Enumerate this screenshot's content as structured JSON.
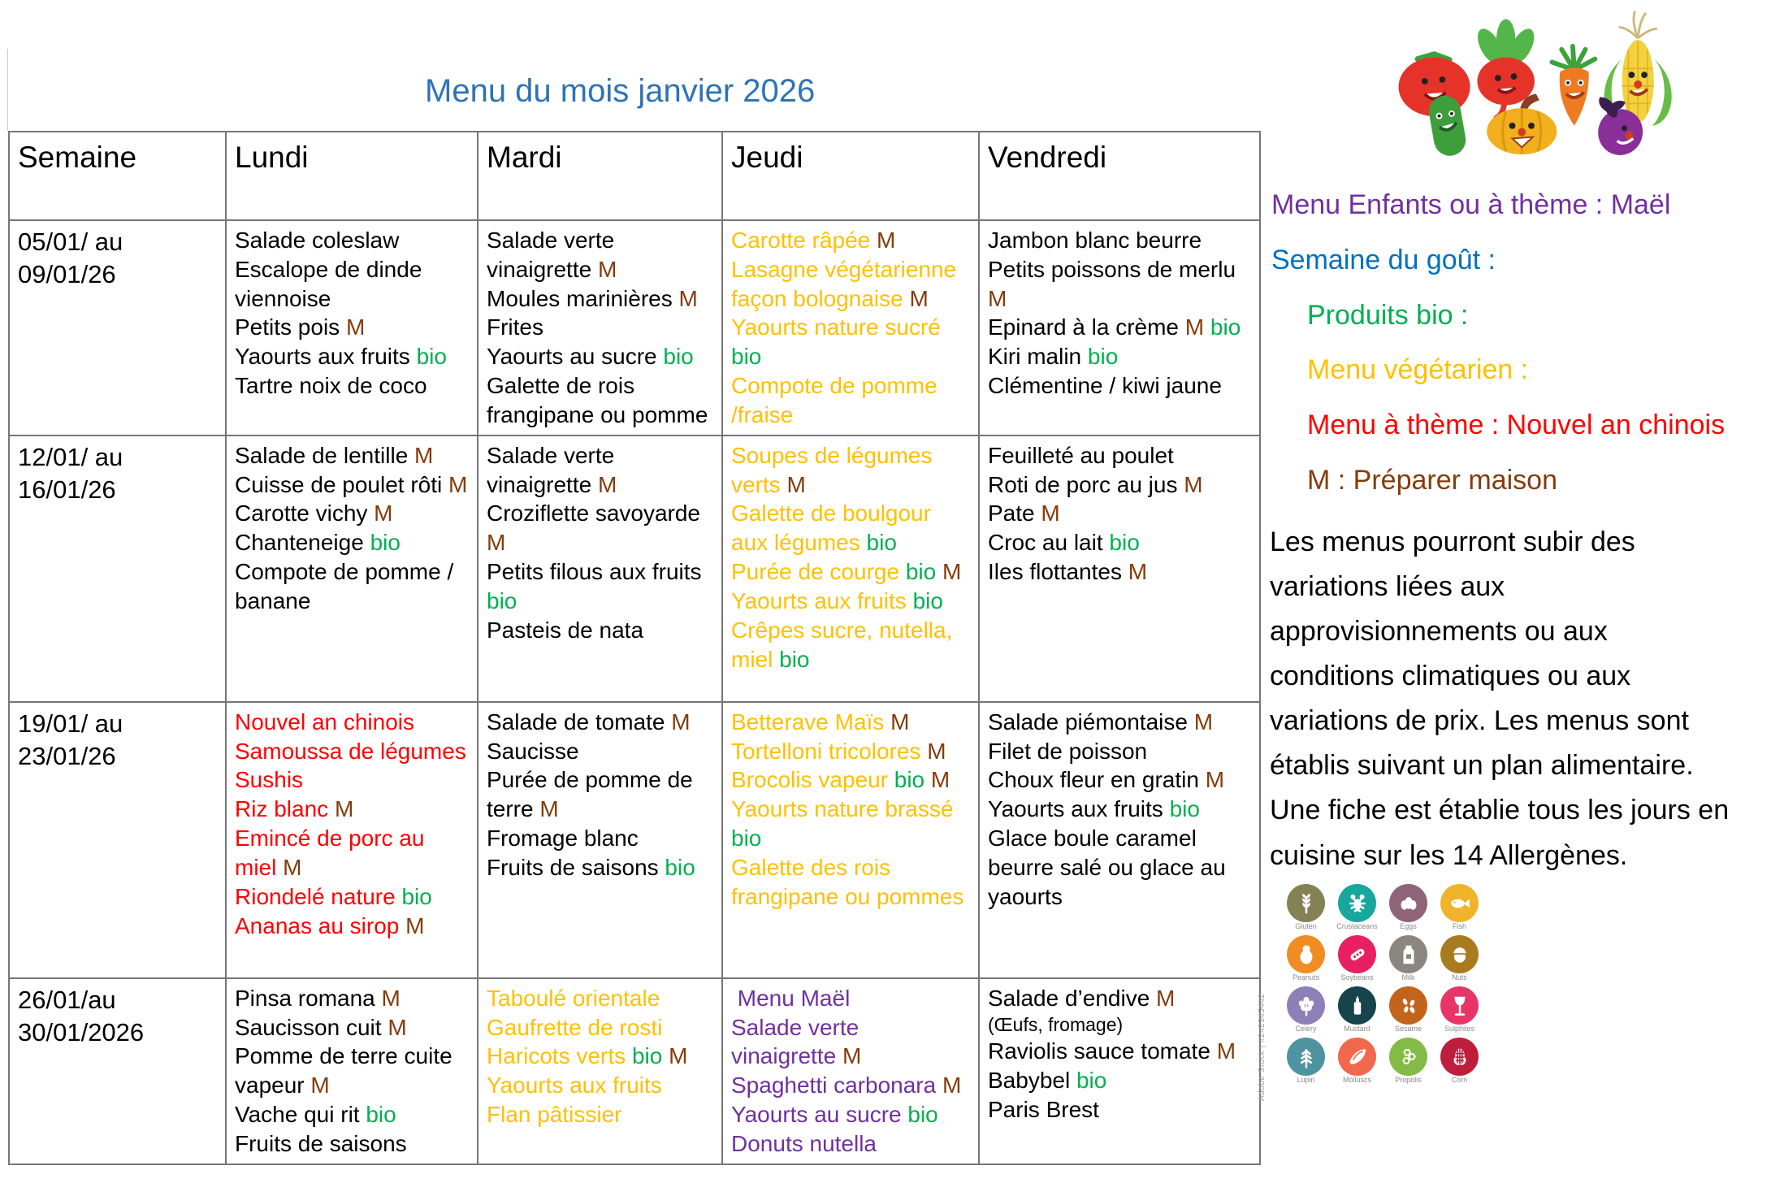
{
  "page": {
    "title": "Menu du mois janvier 2026"
  },
  "colors": {
    "black": "#000000",
    "gold": "#FFC000",
    "red": "#FF0000",
    "purple": "#7030A0",
    "blue": "#0070C0",
    "green": "#00B050",
    "brown": "#843C0C",
    "title_blue": "#2E74B5",
    "m_tag": "#843C0C",
    "bio_tag": "#00B050"
  },
  "table": {
    "headers": [
      "Semaine",
      "Lundi",
      "Mardi",
      "Jeudi",
      "Vendredi"
    ],
    "weeks": [
      {
        "dates": "05/01/ au\n09/01/26",
        "days": [
          {
            "color": "black",
            "items": [
              "Salade coleslaw",
              "Escalope de dinde viennoise",
              "Petits pois [M]",
              "Yaourts aux fruits [bio]",
              "Tartre noix de coco"
            ]
          },
          {
            "color": "black",
            "items": [
              "Salade verte vinaigrette [M]",
              "Moules marinières [M]",
              "Frites",
              "Yaourts au sucre [bio]",
              "Galette de rois frangipane ou pomme"
            ]
          },
          {
            "color": "gold",
            "items": [
              "Carotte râpée [M]",
              "Lasagne végétarienne façon bolognaise [M]",
              "Yaourts nature sucré [bio]",
              "Compote de pomme /fraise"
            ]
          },
          {
            "color": "black",
            "items": [
              "Jambon blanc beurre",
              "Petits poissons de merlu [M]",
              "Epinard à la crème [M] [bio]",
              "Kiri malin [bio]",
              "Clémentine / kiwi jaune"
            ]
          }
        ]
      },
      {
        "dates": "12/01/ au\n16/01/26",
        "days": [
          {
            "color": "black",
            "items": [
              "Salade de lentille [M]",
              "Cuisse de poulet rôti [M]",
              "Carotte vichy [M]",
              "Chanteneige [bio]",
              "Compote de pomme / banane"
            ]
          },
          {
            "color": "black",
            "items": [
              "Salade verte vinaigrette [M]",
              "Croziflette savoyarde [M]",
              "Petits filous aux fruits [bio]",
              "Pasteis de nata"
            ]
          },
          {
            "color": "gold",
            "items": [
              "Soupes de légumes verts [M]",
              "Galette de boulgour aux légumes [bio]",
              "Purée de courge [bio] [M]",
              "Yaourts aux fruits [bio]",
              "Crêpes sucre, nutella, miel [bio]"
            ]
          },
          {
            "color": "black",
            "items": [
              "Feuilleté au poulet",
              "Roti de porc au jus [M]",
              "Pate [M]",
              "Croc au lait [bio]",
              "Iles flottantes [M]"
            ]
          }
        ]
      },
      {
        "dates": "19/01/ au\n23/01/26",
        "days": [
          {
            "color": "red",
            "items": [
              "Nouvel an chinois",
              "Samoussa de légumes",
              "Sushis",
              "Riz blanc [M]",
              "Emincé de porc au miel [M]",
              "Riondelé nature [bio]",
              "Ananas au sirop [M]"
            ]
          },
          {
            "color": "black",
            "items": [
              "Salade de tomate [M]",
              "Saucisse",
              "Purée de pomme de terre [M]",
              "Fromage blanc",
              "Fruits de saisons [bio]"
            ]
          },
          {
            "color": "gold",
            "items": [
              "Betterave Maïs [M]",
              "Tortelloni tricolores [M]",
              "Brocolis vapeur [bio] [M]",
              "Yaourts nature brassé [bio]",
              "Galette des rois frangipane ou pommes"
            ]
          },
          {
            "color": "black",
            "items": [
              "Salade piémontaise [M]",
              "Filet de poisson",
              "Choux fleur en gratin [M]",
              "Yaourts aux fruits [bio]",
              "Glace boule caramel beurre salé ou glace au yaourts"
            ]
          }
        ]
      },
      {
        "dates": "26/01/au\n30/01/2026",
        "days": [
          {
            "color": "black",
            "items": [
              "Pinsa romana [M]",
              "Saucisson cuit [M]",
              "Pomme de terre cuite vapeur [M]",
              "Vache qui rit [bio]",
              "Fruits de saisons"
            ]
          },
          {
            "color": "gold",
            "items": [
              "Taboulé orientale",
              "Gaufrette de rosti",
              "Haricots verts [bio] [M]",
              "Yaourts aux fruits",
              "Flan pâtissier"
            ]
          },
          {
            "color": "purple",
            "items": [
              " Menu Maël",
              "Salade verte vinaigrette [M]",
              "Spaghetti carbonara [M]",
              "Yaourts au sucre [bio]",
              "Donuts nutella"
            ]
          },
          {
            "color": "black",
            "items": [
              "Salade d’endive [M]",
              {
                "t": "(Œufs, fromage)",
                "small": true
              },
              "Raviolis sauce tomate [M]",
              "Babybel [bio]",
              "Paris Brest"
            ]
          }
        ]
      }
    ]
  },
  "sidebar": {
    "legend": [
      {
        "text": "Menu Enfants ou à thème : Maël",
        "color": "purple",
        "indent": 0
      },
      {
        "text": "Semaine du goût :",
        "color": "blue",
        "indent": 0
      },
      {
        "text": "Produits bio :",
        "color": "green",
        "indent": 1
      },
      {
        "text": "Menu végétarien :",
        "color": "gold",
        "indent": 1
      },
      {
        "text": "Menu à thème : Nouvel an chinois",
        "color": "red",
        "indent": 1
      },
      {
        "text": "M : Préparer maison",
        "color": "brown",
        "indent": 1
      }
    ],
    "paragraph": "Les menus pourront subir des\nvariations liées aux\napprovisionnements ou aux\nconditions climatiques ou aux\nvariations de prix. Les menus sont\nétablis suivant un plan alimentaire.\nUne fiche est établie tous les jours en\ncuisine sur les 14 Allergènes.",
    "allergens": {
      "watermark": "Adobe Stock | #242345442",
      "items": [
        {
          "label": "Gluten",
          "icon": "wheat-icon",
          "color": "#848255"
        },
        {
          "label": "Crustaceans",
          "icon": "crustacean-icon",
          "color": "#18A79C"
        },
        {
          "label": "Eggs",
          "icon": "eggs-icon",
          "color": "#8F6478"
        },
        {
          "label": "Fish",
          "icon": "fish-icon",
          "color": "#F0B42C"
        },
        {
          "label": "Peanuts",
          "icon": "peanut-icon",
          "color": "#EF8D22"
        },
        {
          "label": "Soybeans",
          "icon": "soybean-icon",
          "color": "#E81F63"
        },
        {
          "label": "Milk",
          "icon": "milk-bottle-icon",
          "color": "#8B8680"
        },
        {
          "label": "Nuts",
          "icon": "hazelnut-icon",
          "color": "#A87B1E"
        },
        {
          "label": "Celery",
          "icon": "celery-icon",
          "color": "#8E7FB8"
        },
        {
          "label": "Mustard",
          "icon": "mustard-bottle-icon",
          "color": "#16444A"
        },
        {
          "label": "Sesame",
          "icon": "sesame-seeds-icon",
          "color": "#C2641C"
        },
        {
          "label": "Sulphites",
          "icon": "wine-glass-icon",
          "color": "#E73568"
        },
        {
          "label": "Lupin",
          "icon": "lupin-icon",
          "color": "#4E93A0"
        },
        {
          "label": "Molluscs",
          "icon": "mussel-icon",
          "color": "#F2684C"
        },
        {
          "label": "Propolis",
          "icon": "honeycomb-icon",
          "color": "#84BB46"
        },
        {
          "label": "Corn",
          "icon": "corn-icon",
          "color": "#BE1E3C"
        }
      ]
    }
  }
}
